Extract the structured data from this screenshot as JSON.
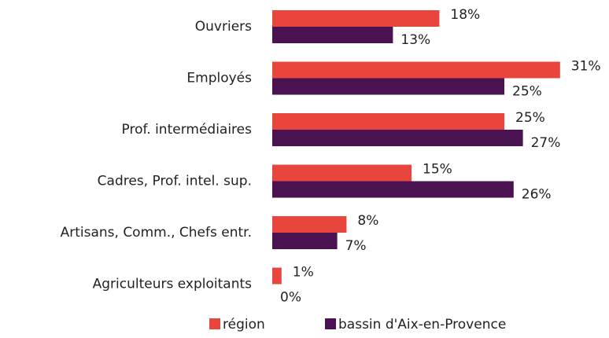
{
  "chart_data": {
    "type": "bar",
    "orientation": "horizontal",
    "categories": [
      "Ouvriers",
      "Employés",
      "Prof. intermédiaires",
      "Cadres, Prof. intel. sup.",
      "Artisans, Comm., Chefs entr.",
      "Agriculteurs exploitants"
    ],
    "series": [
      {
        "name": "région",
        "color": "#e8453c",
        "values": [
          18,
          31,
          25,
          15,
          8,
          1
        ],
        "value_labels": [
          "18%",
          "31%",
          "25%",
          "15%",
          "8%",
          "1%"
        ]
      },
      {
        "name": "bassin d'Aix-en-Provence",
        "color": "#4a1250",
        "values": [
          13,
          25,
          27,
          26,
          7,
          0
        ],
        "value_labels": [
          "13%",
          "25%",
          "27%",
          "26%",
          "7%",
          "0%"
        ]
      }
    ],
    "legend": "bottom"
  }
}
